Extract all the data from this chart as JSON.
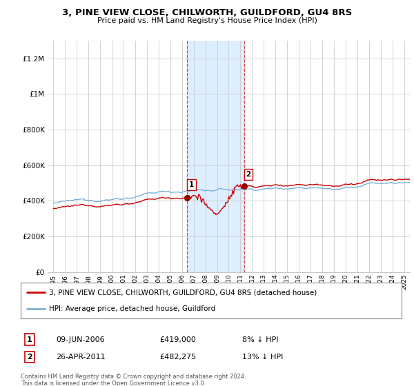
{
  "title": "3, PINE VIEW CLOSE, CHILWORTH, GUILDFORD, GU4 8RS",
  "subtitle": "Price paid vs. HM Land Registry's House Price Index (HPI)",
  "property_label": "3, PINE VIEW CLOSE, CHILWORTH, GUILDFORD, GU4 8RS (detached house)",
  "hpi_label": "HPI: Average price, detached house, Guildford",
  "footnote": "Contains HM Land Registry data © Crown copyright and database right 2024.\nThis data is licensed under the Open Government Licence v3.0.",
  "sale1_label": "1",
  "sale1_date": "09-JUN-2006",
  "sale1_price": "£419,000",
  "sale1_hpi": "8% ↓ HPI",
  "sale2_label": "2",
  "sale2_date": "26-APR-2011",
  "sale2_price": "£482,275",
  "sale2_hpi": "13% ↓ HPI",
  "sale1_x": 2006.44,
  "sale1_y": 419000,
  "sale2_x": 2011.32,
  "sale2_y": 482275,
  "shade_x1": 2006.44,
  "shade_x2": 2011.32,
  "red_line_color": "#cc0000",
  "blue_line_color": "#7ab0d4",
  "shade_color": "#ddeeff",
  "marker_color": "#990000",
  "background_color": "#ffffff",
  "grid_color": "#cccccc",
  "ylim": [
    0,
    1300000
  ],
  "xlim": [
    1994.5,
    2025.5
  ],
  "yticks": [
    0,
    200000,
    400000,
    600000,
    800000,
    1000000,
    1200000
  ],
  "xticks": [
    1995,
    1996,
    1997,
    1998,
    1999,
    2000,
    2001,
    2002,
    2003,
    2004,
    2005,
    2006,
    2007,
    2008,
    2009,
    2010,
    2011,
    2012,
    2013,
    2014,
    2015,
    2016,
    2017,
    2018,
    2019,
    2020,
    2021,
    2022,
    2023,
    2024,
    2025
  ]
}
